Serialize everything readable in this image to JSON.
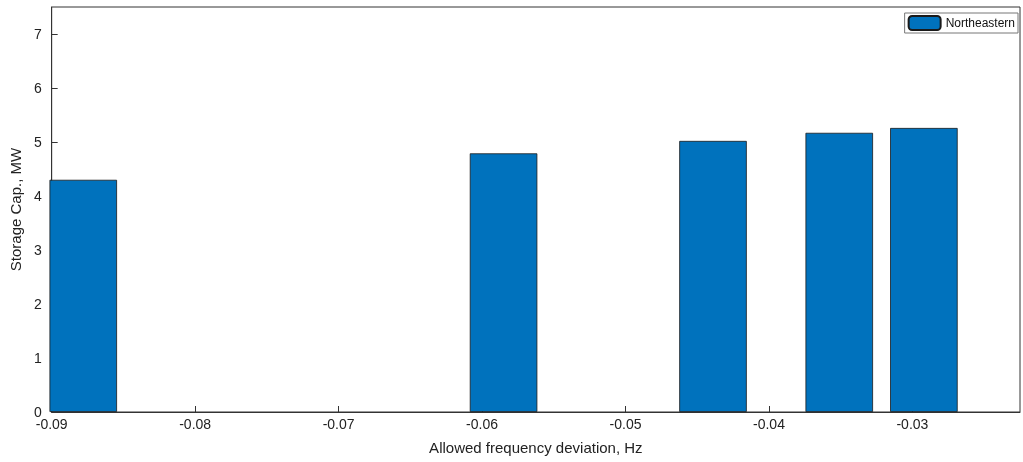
{
  "chart_data": {
    "type": "bar",
    "xlabel": "Allowed frequency deviation, Hz",
    "ylabel": "Storage Cap., MW",
    "x": [
      -0.0878,
      -0.0585,
      -0.0439,
      -0.0351,
      -0.0292
    ],
    "series": [
      {
        "name": "Northeastern",
        "color": "#0072bd",
        "values": [
          4.3,
          4.79,
          5.02,
          5.17,
          5.26
        ]
      }
    ],
    "xlim": [
      -0.09,
      -0.0225
    ],
    "xticks": [
      -0.09,
      -0.08,
      -0.07,
      -0.06,
      -0.05,
      -0.04,
      -0.03
    ],
    "ylim": [
      0,
      7.5
    ],
    "yticks": [
      0,
      1,
      2,
      3,
      4,
      5,
      6,
      7
    ],
    "grid": false,
    "legend": "top right"
  }
}
